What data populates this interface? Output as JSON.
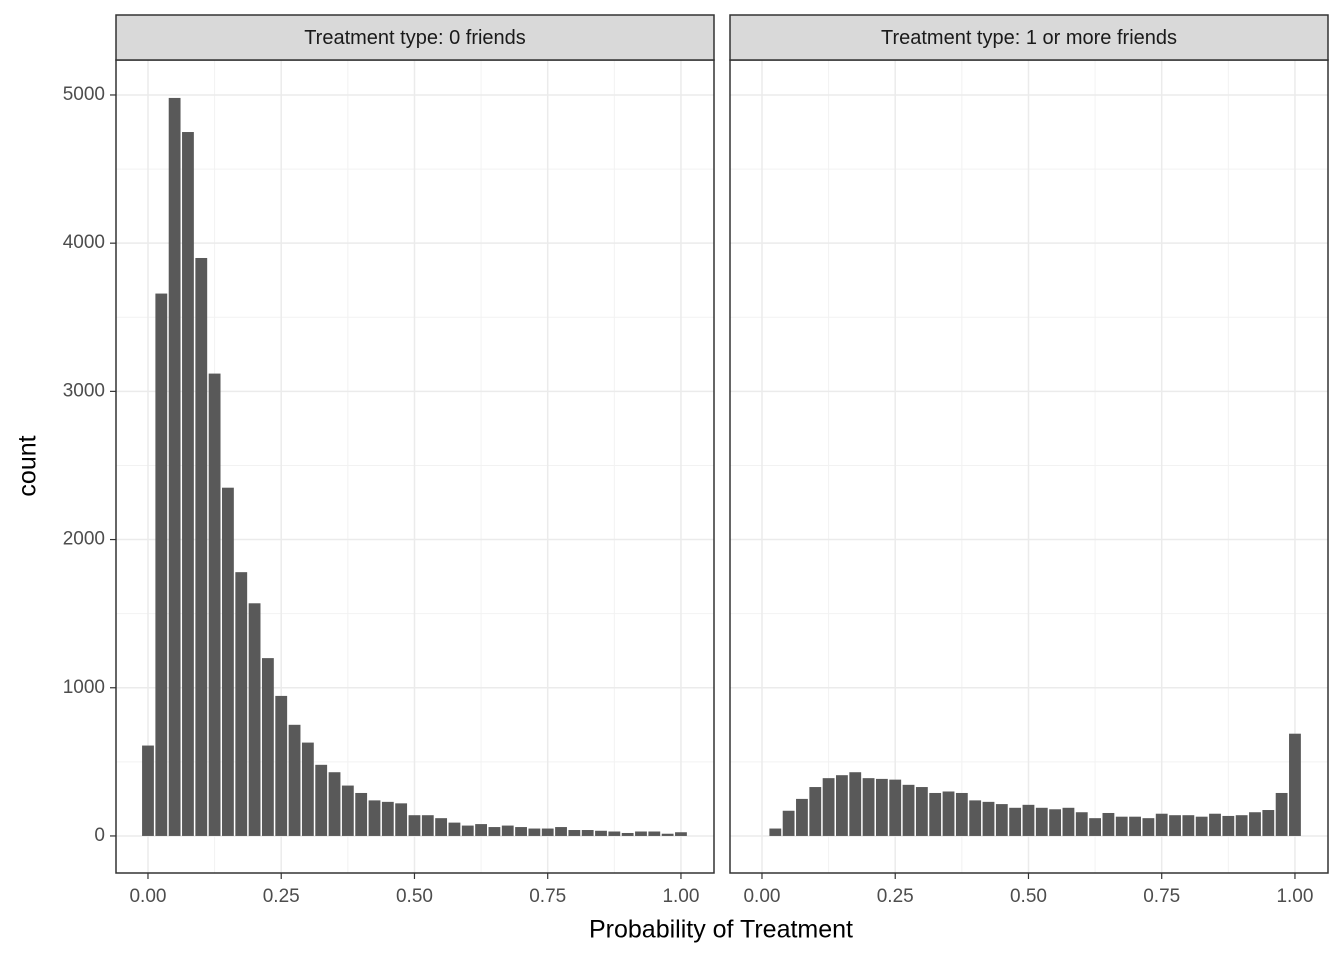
{
  "chart_data": [
    {
      "type": "histogram",
      "title": "Treatment type: 0 friends",
      "xlabel": "Probability of Treatment",
      "ylabel": "count",
      "bins": [
        -0.0125,
        0.0125,
        0.0375,
        0.0625,
        0.0875,
        0.1125,
        0.1375,
        0.1625,
        0.1875,
        0.2125,
        0.2375,
        0.2625,
        0.2875,
        0.3125,
        0.3375,
        0.3625,
        0.3875,
        0.4125,
        0.4375,
        0.4625,
        0.4875,
        0.5125,
        0.5375,
        0.5625,
        0.5875,
        0.6125,
        0.6375,
        0.6625,
        0.6875,
        0.7125,
        0.7375,
        0.7625,
        0.7875,
        0.8125,
        0.8375,
        0.8625,
        0.8875,
        0.9125,
        0.9375,
        0.9625,
        0.9875,
        1.0125
      ],
      "values": [
        610,
        3660,
        4980,
        4750,
        3900,
        3120,
        2350,
        1780,
        1570,
        1200,
        945,
        750,
        630,
        480,
        430,
        340,
        290,
        240,
        230,
        220,
        140,
        140,
        120,
        90,
        70,
        80,
        60,
        70,
        60,
        50,
        50,
        60,
        40,
        40,
        35,
        30,
        20,
        30,
        30,
        15,
        25
      ],
      "color": "#595959",
      "xlim": [
        -0.06,
        1.062
      ],
      "ylim": [
        -250,
        5236
      ],
      "xticks": [
        {
          "value": 0,
          "label": "0.00"
        },
        {
          "value": 0.25,
          "label": "0.25"
        },
        {
          "value": 0.5,
          "label": "0.50"
        },
        {
          "value": 0.75,
          "label": "0.75"
        },
        {
          "value": 1,
          "label": "1.00"
        }
      ],
      "yticks": [
        0,
        1000,
        2000,
        3000,
        4000,
        5000
      ],
      "grid": true
    },
    {
      "type": "histogram",
      "title": "Treatment type: 1 or more friends",
      "bins": [
        -0.0125,
        0.0125,
        0.0375,
        0.0625,
        0.0875,
        0.1125,
        0.1375,
        0.1625,
        0.1875,
        0.2125,
        0.2375,
        0.2625,
        0.2875,
        0.3125,
        0.3375,
        0.3625,
        0.3875,
        0.4125,
        0.4375,
        0.4625,
        0.4875,
        0.5125,
        0.5375,
        0.5625,
        0.5875,
        0.6125,
        0.6375,
        0.6625,
        0.6875,
        0.7125,
        0.7375,
        0.7625,
        0.7875,
        0.8125,
        0.8375,
        0.8625,
        0.8875,
        0.9125,
        0.9375,
        0.9625,
        0.9875,
        1.0125
      ],
      "values": [
        0,
        50,
        170,
        250,
        330,
        390,
        410,
        430,
        390,
        385,
        380,
        345,
        330,
        290,
        300,
        290,
        240,
        230,
        215,
        190,
        210,
        190,
        180,
        190,
        160,
        120,
        155,
        130,
        130,
        120,
        150,
        140,
        140,
        130,
        150,
        135,
        140,
        160,
        175,
        290,
        690
      ],
      "color": "#595959",
      "xlim": [
        -0.06,
        1.062
      ],
      "ylim": [
        -250,
        5236
      ],
      "xticks": [
        {
          "value": 0,
          "label": "0.00"
        },
        {
          "value": 0.25,
          "label": "0.25"
        },
        {
          "value": 0.5,
          "label": "0.50"
        },
        {
          "value": 0.75,
          "label": "0.75"
        },
        {
          "value": 1,
          "label": "1.00"
        }
      ],
      "yticks": [
        0,
        1000,
        2000,
        3000,
        4000,
        5000
      ],
      "grid": true
    }
  ]
}
